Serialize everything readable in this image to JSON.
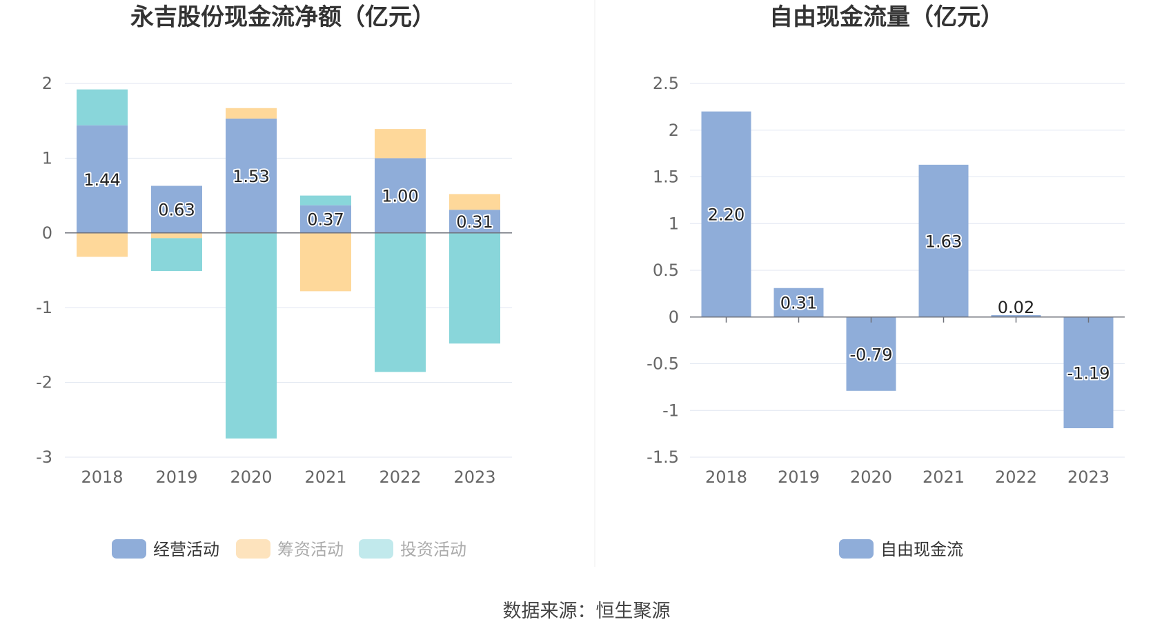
{
  "chart_data": [
    {
      "type": "bar",
      "stacked": true,
      "title": "永吉股份现金流净额（亿元）",
      "categories": [
        "2018",
        "2019",
        "2020",
        "2021",
        "2022",
        "2023"
      ],
      "series": [
        {
          "name": "经营活动",
          "color": "#8fadd9",
          "values": [
            1.44,
            0.63,
            1.53,
            0.37,
            1.0,
            0.31
          ]
        },
        {
          "name": "筹资活动",
          "color": "#fed89a",
          "values": [
            -0.32,
            -0.07,
            0.14,
            -0.78,
            0.39,
            0.21
          ]
        },
        {
          "name": "投资活动",
          "color": "#89d6da",
          "values": [
            0.48,
            -0.44,
            -2.75,
            0.13,
            -1.86,
            -1.48
          ]
        }
      ],
      "data_labels": [
        "1.44",
        "0.63",
        "1.53",
        "0.37",
        "1.00",
        "0.31"
      ],
      "yticks": [
        "2",
        "1",
        "0",
        "-1",
        "-2",
        "-3"
      ],
      "ylim": [
        -3,
        2
      ],
      "legend_colors": [
        "#8fadd9",
        "#fde3bd",
        "#c1e9ec"
      ],
      "legend_text_colors": [
        "#333333",
        "#aaaaaa",
        "#aaaaaa"
      ]
    },
    {
      "type": "bar",
      "title": "自由现金流量（亿元）",
      "categories": [
        "2018",
        "2019",
        "2020",
        "2021",
        "2022",
        "2023"
      ],
      "series": [
        {
          "name": "自由现金流",
          "color": "#8fadd9",
          "values": [
            2.2,
            0.31,
            -0.79,
            1.63,
            0.02,
            -1.19
          ]
        }
      ],
      "data_labels": [
        "2.20",
        "0.31",
        "-0.79",
        "1.63",
        "0.02",
        "-1.19"
      ],
      "yticks": [
        "2.5",
        "2",
        "1.5",
        "1",
        "0.5",
        "0",
        "-0.5",
        "-1",
        "-1.5"
      ],
      "ylim": [
        -1.5,
        2.5
      ],
      "legend_colors": [
        "#8fadd9"
      ],
      "legend_text_colors": [
        "#333333"
      ]
    }
  ],
  "footer": {
    "source": "数据来源：恒生聚源"
  },
  "colors": {
    "grid": "#e0e6f1",
    "axis": "#6e7079",
    "divider": "#eeeeee"
  }
}
